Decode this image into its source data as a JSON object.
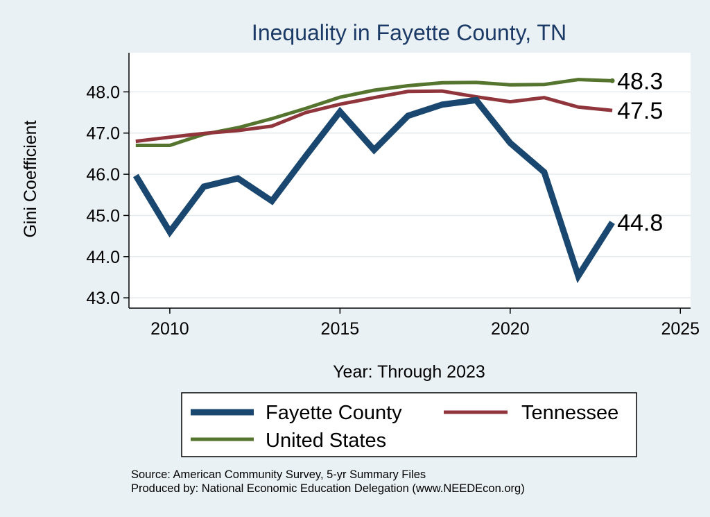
{
  "chart_data": {
    "type": "line",
    "title": "Inequality in Fayette County, TN",
    "xlabel": "Year: Through 2023",
    "ylabel": "Gini Coefficient",
    "xlim": [
      2008.8,
      2025.3
    ],
    "ylim": [
      42.75,
      48.95
    ],
    "x_ticks": [
      2010,
      2015,
      2020,
      2025
    ],
    "x_tick_labels": [
      "2010",
      "2015",
      "2020",
      "2025"
    ],
    "y_ticks": [
      43,
      44,
      45,
      46,
      47,
      48
    ],
    "y_tick_labels": [
      "43.0",
      "44.0",
      "45.0",
      "46.0",
      "47.0",
      "48.0"
    ],
    "grid": true,
    "legend_position": "bottom",
    "x": [
      2009,
      2010,
      2011,
      2012,
      2013,
      2014,
      2015,
      2016,
      2017,
      2018,
      2019,
      2020,
      2021,
      2022,
      2023
    ],
    "series": [
      {
        "name": "Fayette County",
        "color": "#1a476f",
        "values": [
          45.97,
          44.6,
          45.7,
          45.9,
          45.35,
          46.45,
          47.52,
          46.59,
          47.42,
          47.69,
          47.8,
          46.76,
          46.05,
          43.53,
          44.83
        ],
        "end_label": "44.8"
      },
      {
        "name": "Tennessee",
        "color": "#90353b",
        "values": [
          46.8,
          46.9,
          46.99,
          47.06,
          47.17,
          47.5,
          47.7,
          47.86,
          48.01,
          48.02,
          47.88,
          47.76,
          47.86,
          47.63,
          47.55
        ],
        "end_label": "47.5"
      },
      {
        "name": "United States",
        "color": "#55752f",
        "values": [
          46.7,
          46.7,
          46.97,
          47.13,
          47.35,
          47.6,
          47.87,
          48.04,
          48.15,
          48.22,
          48.23,
          48.17,
          48.18,
          48.3,
          48.27
        ],
        "end_label": "48.3"
      }
    ],
    "source_lines": [
      "Source: American Community Survey, 5-yr Summary Files",
      "Produced by: National Economic Education Delegation (www.NEEDEcon.org)"
    ]
  }
}
